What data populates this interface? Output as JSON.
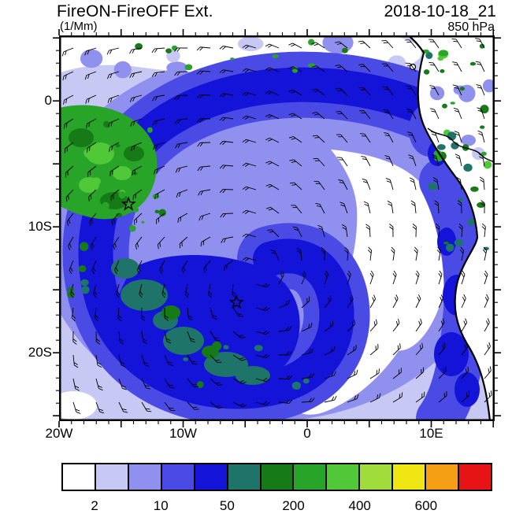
{
  "header": {
    "title": "FireON-FireOFF Ext.",
    "units": "(1/Mm)",
    "datetime": "2018-10-18_21",
    "level": "850 hPa"
  },
  "axes": {
    "y_ticks": [
      {
        "label": "0",
        "deg": 0
      },
      {
        "label": "10S",
        "deg": -10
      },
      {
        "label": "20S",
        "deg": -20
      }
    ],
    "x_ticks": [
      {
        "label": "20W",
        "deg": -20
      },
      {
        "label": "10W",
        "deg": -10
      },
      {
        "label": "0",
        "deg": 0
      },
      {
        "label": "10E",
        "deg": 10
      }
    ]
  },
  "colorbar": {
    "colors": [
      "#FFFFFF",
      "#C8C8F4",
      "#9090EE",
      "#4A4AE4",
      "#1414D8",
      "#1E7468",
      "#167A16",
      "#28A428",
      "#50C838",
      "#A0DC3C",
      "#F0E614",
      "#F5A014",
      "#E61414"
    ],
    "labels": [
      {
        "text": "2",
        "boundary": 1
      },
      {
        "text": "10",
        "boundary": 3
      },
      {
        "text": "50",
        "boundary": 5
      },
      {
        "text": "200",
        "boundary": 7
      },
      {
        "text": "400",
        "boundary": 9
      },
      {
        "text": "600",
        "boundary": 11
      }
    ]
  },
  "chart_data": {
    "type": "heatmap",
    "title": "FireON-FireOFF Ext.",
    "units": "1/Mm",
    "valid_time": "2018-10-18_21",
    "level": "850 hPa",
    "x_tick_labels": [
      "20W",
      "10W",
      "0",
      "10E"
    ],
    "y_tick_labels": [
      "0",
      "10S",
      "20S"
    ],
    "x_range_deg": [
      -20,
      15.1
    ],
    "y_range_deg": [
      5.2,
      -25.4
    ],
    "colorbar_labels": [
      2,
      10,
      50,
      200,
      400,
      600
    ],
    "palette": [
      "#FFFFFF",
      "#C8C8F4",
      "#9090EE",
      "#4A4AE4",
      "#1414D8",
      "#1E7468",
      "#167A16",
      "#28A428",
      "#50C838",
      "#A0DC3C",
      "#F0E614",
      "#F5A014",
      "#E61414"
    ],
    "overlay": "wind-barbs",
    "markers": [
      {
        "symbol": "star",
        "lon_deg": -14.4,
        "lat_deg": -8.2
      },
      {
        "symbol": "star",
        "lon_deg": -5.7,
        "lat_deg": -16.0
      }
    ],
    "field_summary": "Anticyclonic spiral of elevated aerosol extinction over the SE Atlantic; deep blue band (10-50 1/Mm) wrapping around a dark core with green/teal maxima, green maxima near 20W-13W north of 10S and along the African coast; clear white slot spiraling from the northeast into the center; Africa coastline on the right edge."
  }
}
